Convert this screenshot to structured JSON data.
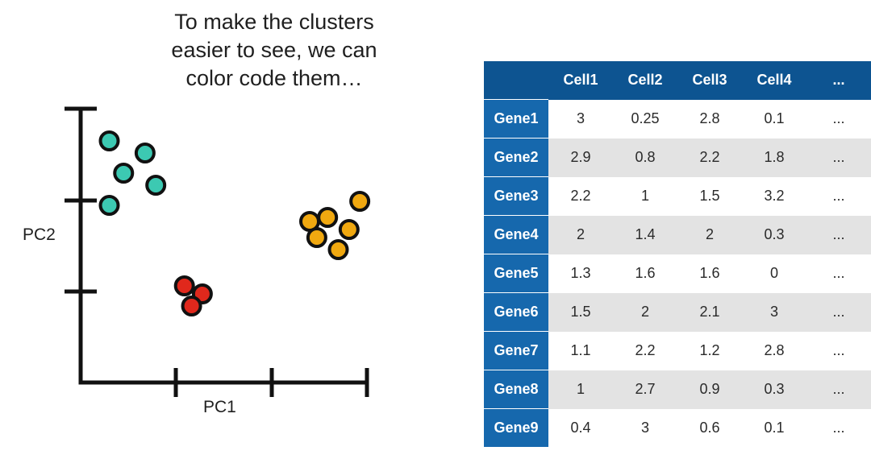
{
  "caption": {
    "line1": "To make the clusters",
    "line2": "easier to see, we can",
    "line3": "color code them…"
  },
  "colors": {
    "cluster_teal": "#3cc9b2",
    "cluster_orange": "#f0a810",
    "cluster_red": "#e0281c",
    "axis": "#111111",
    "table_header": "#0d5491",
    "table_row_header": "#1668ad",
    "table_stripe": "#e3e3e3"
  },
  "chart_data": {
    "type": "scatter",
    "xlabel": "PC1",
    "ylabel": "PC2",
    "grid": false,
    "series": [
      {
        "color": "#3cc9b2",
        "points": [
          [
            0.4,
            3.0
          ],
          [
            0.9,
            2.85
          ],
          [
            0.6,
            2.6
          ],
          [
            1.05,
            2.45
          ],
          [
            0.4,
            2.2
          ]
        ]
      },
      {
        "color": "#f0a810",
        "points": [
          [
            3.2,
            2.0
          ],
          [
            3.45,
            2.05
          ],
          [
            3.9,
            2.25
          ],
          [
            3.3,
            1.8
          ],
          [
            3.75,
            1.9
          ],
          [
            3.6,
            1.65
          ]
        ]
      },
      {
        "color": "#e0281c",
        "points": [
          [
            1.45,
            1.2
          ],
          [
            1.7,
            1.1
          ],
          [
            1.55,
            0.95
          ]
        ]
      }
    ]
  },
  "table": {
    "columns": [
      "Cell1",
      "Cell2",
      "Cell3",
      "Cell4",
      "..."
    ],
    "rows": [
      {
        "gene": "Gene1",
        "values": [
          "3",
          "0.25",
          "2.8",
          "0.1",
          "..."
        ]
      },
      {
        "gene": "Gene2",
        "values": [
          "2.9",
          "0.8",
          "2.2",
          "1.8",
          "..."
        ]
      },
      {
        "gene": "Gene3",
        "values": [
          "2.2",
          "1",
          "1.5",
          "3.2",
          "..."
        ]
      },
      {
        "gene": "Gene4",
        "values": [
          "2",
          "1.4",
          "2",
          "0.3",
          "..."
        ]
      },
      {
        "gene": "Gene5",
        "values": [
          "1.3",
          "1.6",
          "1.6",
          "0",
          "..."
        ]
      },
      {
        "gene": "Gene6",
        "values": [
          "1.5",
          "2",
          "2.1",
          "3",
          "..."
        ]
      },
      {
        "gene": "Gene7",
        "values": [
          "1.1",
          "2.2",
          "1.2",
          "2.8",
          "..."
        ]
      },
      {
        "gene": "Gene8",
        "values": [
          "1",
          "2.7",
          "0.9",
          "0.3",
          "..."
        ]
      },
      {
        "gene": "Gene9",
        "values": [
          "0.4",
          "3",
          "0.6",
          "0.1",
          "..."
        ]
      }
    ]
  }
}
